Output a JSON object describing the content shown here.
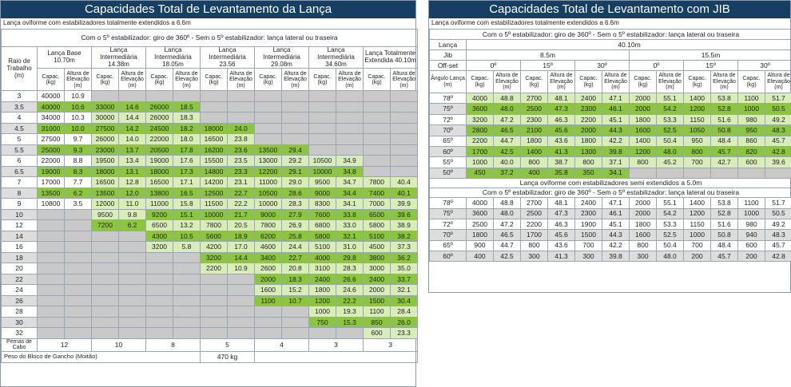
{
  "left": {
    "title": "Capacidades Total de Levantamento da Lança",
    "subtitle": "Lança oviforme com estabilizadores totalmente extendidos a 6.6m",
    "config": "Com o 5º estabilizador: giro de 360º - Sem o 5º estabilizador: lança lateral ou traseira",
    "raio_header": "Raio de Trabalho (m)",
    "booms": [
      "Lança Base 10.70m",
      "Lança Intermediária 14.38m",
      "Lança Intermediária 18.05m",
      "Lança Intermediária 23.56",
      "Lança Intermediária 29.08m",
      "Lança Intermediária 34.60m",
      "Lança Totalmente Extendida 40.10m"
    ],
    "capac": "Capac. (kg)",
    "altura": "Altura de Elevação (m)",
    "rows": [
      [
        "3",
        "40000",
        "10.9",
        "",
        "",
        "",
        "",
        "",
        "",
        "",
        "",
        "",
        "",
        "",
        ""
      ],
      [
        "3.5",
        "40000",
        "10.6",
        "33000",
        "14.6",
        "26000",
        "18.5",
        "",
        "",
        "",
        "",
        "",
        "",
        "",
        ""
      ],
      [
        "4",
        "34000",
        "10.3",
        "30000",
        "14.4",
        "26000",
        "18.3",
        "",
        "",
        "",
        "",
        "",
        "",
        "",
        ""
      ],
      [
        "4.5",
        "31000",
        "10.0",
        "27500",
        "14.2",
        "24500",
        "18.2",
        "18000",
        "24.0",
        "",
        "",
        "",
        "",
        "",
        ""
      ],
      [
        "5",
        "27500",
        "9.7",
        "26000",
        "14.0",
        "22000",
        "18.0",
        "16500",
        "23.8",
        "",
        "",
        "",
        "",
        "",
        ""
      ],
      [
        "5.5",
        "25000",
        "9.3",
        "23000",
        "13.7",
        "20500",
        "17.8",
        "16200",
        "23.6",
        "13500",
        "29.4",
        "",
        "",
        "",
        ""
      ],
      [
        "6",
        "22000",
        "8.8",
        "19500",
        "13.4",
        "19000",
        "17.6",
        "15500",
        "23.5",
        "13000",
        "29.2",
        "10500",
        "34.9",
        "",
        ""
      ],
      [
        "6.5",
        "19000",
        "8.3",
        "18000",
        "13.1",
        "18000",
        "17.3",
        "14800",
        "23.3",
        "12200",
        "29.1",
        "10000",
        "34.8",
        "",
        ""
      ],
      [
        "7",
        "17000",
        "7.7",
        "16500",
        "12.8",
        "16500",
        "17.1",
        "14200",
        "23.1",
        "11000",
        "29.0",
        "9500",
        "34.7",
        "7800",
        "40.4"
      ],
      [
        "8",
        "13500",
        "6.2",
        "13500",
        "12.0",
        "13800",
        "16.5",
        "12500",
        "22.7",
        "10500",
        "28.6",
        "9000",
        "34.4",
        "7400",
        "40.1"
      ],
      [
        "9",
        "10800",
        "3.5",
        "12000",
        "11.0",
        "11000",
        "15.8",
        "11500",
        "22.2",
        "10000",
        "28.3",
        "8300",
        "34.1",
        "7000",
        "39.9"
      ],
      [
        "10",
        "",
        "",
        "9500",
        "9.8",
        "9200",
        "15.1",
        "10000",
        "21.7",
        "9000",
        "27.9",
        "7600",
        "33.8",
        "6500",
        "39.6"
      ],
      [
        "12",
        "",
        "",
        "7200",
        "6.2",
        "6500",
        "13.2",
        "7800",
        "20.5",
        "7800",
        "26.9",
        "6800",
        "33.0",
        "5800",
        "38.9"
      ],
      [
        "14",
        "",
        "",
        "",
        "",
        "4300",
        "10.5",
        "5600",
        "18.9",
        "6200",
        "25.8",
        "5800",
        "32.1",
        "5100",
        "38.2"
      ],
      [
        "16",
        "",
        "",
        "",
        "",
        "3200",
        "5.8",
        "4200",
        "17.0",
        "4600",
        "24.4",
        "5100",
        "31.0",
        "4500",
        "37.3"
      ],
      [
        "18",
        "",
        "",
        "",
        "",
        "",
        "",
        "3200",
        "14.4",
        "3400",
        "22.7",
        "4000",
        "29.8",
        "3800",
        "36.2"
      ],
      [
        "20",
        "",
        "",
        "",
        "",
        "",
        "",
        "2200",
        "10.9",
        "2600",
        "20.8",
        "3100",
        "28.3",
        "3000",
        "35.0"
      ],
      [
        "22",
        "",
        "",
        "",
        "",
        "",
        "",
        "",
        "",
        "2000",
        "18.3",
        "2400",
        "26.6",
        "2400",
        "33.7"
      ],
      [
        "24",
        "",
        "",
        "",
        "",
        "",
        "",
        "",
        "",
        "1600",
        "15.2",
        "1800",
        "24.6",
        "2000",
        "32.1"
      ],
      [
        "26",
        "",
        "",
        "",
        "",
        "",
        "",
        "",
        "",
        "1100",
        "10.7",
        "1200",
        "22.2",
        "1500",
        "30.4"
      ],
      [
        "28",
        "",
        "",
        "",
        "",
        "",
        "",
        "",
        "",
        "",
        "",
        "1000",
        "19.3",
        "1100",
        "28.4"
      ],
      [
        "30",
        "",
        "",
        "",
        "",
        "",
        "",
        "",
        "",
        "",
        "",
        "750",
        "15.3",
        "850",
        "26.0"
      ],
      [
        "32",
        "",
        "",
        "",
        "",
        "",
        "",
        "",
        "",
        "",
        "",
        "",
        "",
        "600",
        "23.3"
      ]
    ],
    "cabo_label": "Pernas de Cabo",
    "cabo": [
      "12",
      "10",
      "8",
      "5",
      "4",
      "3",
      "3"
    ],
    "peso_label": "Peso do Bloco de Gancho (Moitão)",
    "peso": "470 kg"
  },
  "right": {
    "title": "Capacidades Total de Levantamento com JIB",
    "subtitle": "Lança oviforme com estabilizadores totalmente extendidos a 6.6m",
    "config": "Com o 5º estabilizador: giro de 360º - Sem o 5º estabilizador: lança lateral ou traseira",
    "lanca_label": "Lança",
    "lanca": "40.10m",
    "jib_label": "Jib",
    "jibs": [
      "8.5m",
      "15.5m"
    ],
    "offset_label": "Off-set",
    "offsets": [
      "0º",
      "15º",
      "30º",
      "0º",
      "15º",
      "30º"
    ],
    "angle_label": "Ângulo Lança (m)",
    "capac": "Capac. (kg)",
    "altura": "Altura de Elevação (m)",
    "rows1": [
      [
        "78º",
        "4000",
        "48.8",
        "2700",
        "48.1",
        "2400",
        "47.1",
        "2000",
        "55.1",
        "1400",
        "53.8",
        "1100",
        "51.7"
      ],
      [
        "75º",
        "3600",
        "48.0",
        "2500",
        "47.3",
        "2300",
        "46.1",
        "2000",
        "54.2",
        "1200",
        "52.8",
        "1000",
        "50.5"
      ],
      [
        "72º",
        "3200",
        "47.2",
        "2300",
        "46.3",
        "2200",
        "45.1",
        "1800",
        "53.3",
        "1150",
        "51.6",
        "980",
        "49.2"
      ],
      [
        "70º",
        "2800",
        "46.5",
        "2100",
        "45.6",
        "2000",
        "44.3",
        "1600",
        "52.5",
        "1050",
        "50.8",
        "950",
        "48.3"
      ],
      [
        "65º",
        "2200",
        "44.7",
        "1800",
        "43.6",
        "1800",
        "42.2",
        "1400",
        "50.4",
        "950",
        "48.4",
        "860",
        "45.7"
      ],
      [
        "60º",
        "1700",
        "42.5",
        "1400",
        "41.3",
        "1300",
        "39.8",
        "1200",
        "48.0",
        "800",
        "45.7",
        "820",
        "42.8"
      ],
      [
        "55º",
        "1000",
        "40.0",
        "800",
        "38.7",
        "800",
        "37.1",
        "800",
        "45.2",
        "700",
        "42.7",
        "600",
        "39.6"
      ],
      [
        "50º",
        "450",
        "37.2",
        "400",
        "35.8",
        "350",
        "34.1",
        "",
        "",
        "",
        "",
        "",
        ""
      ]
    ],
    "semi_title": "Lança oviforme com estabilizadores semi extendidos a 5.0m",
    "semi_config": "Com o 5º estabilizador: giro de 360º - Sem o 5º estabilizador: lança lateral ou traseira",
    "rows2": [
      [
        "78º",
        "4000",
        "48.8",
        "2700",
        "48.1",
        "2400",
        "47.1",
        "2000",
        "55.1",
        "1400",
        "53.8",
        "1100",
        "51.7"
      ],
      [
        "75º",
        "3600",
        "48.0",
        "2500",
        "47.3",
        "2300",
        "46.1",
        "2000",
        "54.2",
        "1200",
        "52.8",
        "1000",
        "50.5"
      ],
      [
        "72º",
        "2500",
        "47.2",
        "2200",
        "46.3",
        "1900",
        "45.1",
        "1800",
        "53.3",
        "1150",
        "51.6",
        "980",
        "49.2"
      ],
      [
        "70º",
        "1800",
        "46.5",
        "1700",
        "45.6",
        "1500",
        "44.3",
        "1600",
        "52.5",
        "1000",
        "50.8",
        "940",
        "48.3"
      ],
      [
        "65º",
        "900",
        "44.7",
        "800",
        "43.6",
        "700",
        "42.2",
        "800",
        "50.4",
        "700",
        "48.4",
        "600",
        "45.7"
      ],
      [
        "60º",
        "400",
        "42.5",
        "300",
        "41.3",
        "300",
        "39.8",
        "300",
        "48.0",
        "200",
        "45.7",
        "200",
        "42.8"
      ]
    ]
  }
}
